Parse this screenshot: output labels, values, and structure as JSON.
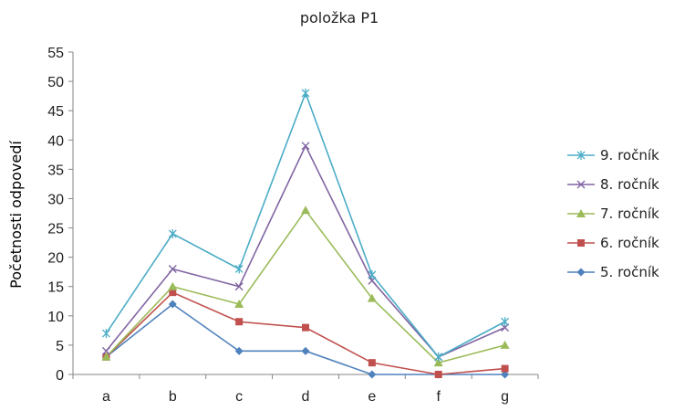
{
  "chart_data": {
    "type": "line",
    "title": "položka P1",
    "ylabel": "Početnosti odpovedí",
    "xlabel": "",
    "categories": [
      "a",
      "b",
      "c",
      "d",
      "e",
      "f",
      "g"
    ],
    "ylim": [
      0,
      55
    ],
    "yticks": [
      0,
      5,
      10,
      15,
      20,
      25,
      30,
      35,
      40,
      45,
      50,
      55
    ],
    "grid": false,
    "legend_position": "right",
    "series": [
      {
        "name": "5. ročník",
        "color": "#4f81bd",
        "marker": "diamond",
        "values": [
          3,
          12,
          4,
          4,
          0,
          0,
          0
        ]
      },
      {
        "name": "6. ročník",
        "color": "#c0504d",
        "marker": "square",
        "values": [
          3,
          14,
          9,
          8,
          2,
          0,
          1
        ]
      },
      {
        "name": "7. ročník",
        "color": "#9bbb59",
        "marker": "triangle",
        "values": [
          3,
          15,
          12,
          28,
          13,
          2,
          5
        ]
      },
      {
        "name": "8. ročník",
        "color": "#8064a2",
        "marker": "x",
        "values": [
          4,
          18,
          15,
          39,
          16,
          3,
          8
        ]
      },
      {
        "name": "9. ročník",
        "color": "#4bacc6",
        "marker": "star",
        "values": [
          7,
          24,
          18,
          48,
          17,
          3,
          9
        ]
      }
    ],
    "legend_order": [
      "9. ročník",
      "8. ročník",
      "7. ročník",
      "6. ročník",
      "5. ročník"
    ]
  }
}
